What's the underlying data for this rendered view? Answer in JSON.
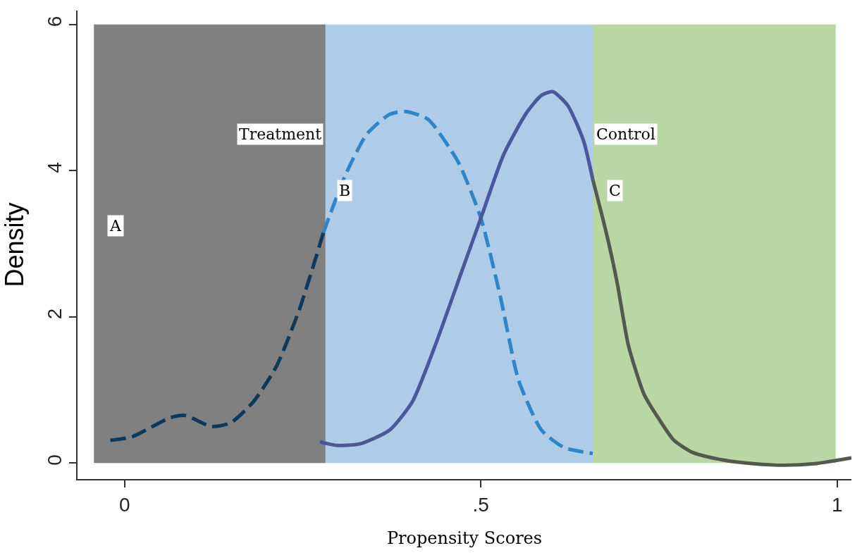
{
  "chart_data": {
    "type": "line",
    "xlabel": "Propensity Scores",
    "ylabel": "Density",
    "xlim": [
      -0.066,
      1.02
    ],
    "ylim": [
      -0.22,
      6.19
    ],
    "xticks": [
      0,
      {
        "value": 0.5,
        "label": ".5"
      },
      1
    ],
    "yticks": [
      0,
      2,
      4,
      6
    ],
    "grid": false,
    "marker": "none",
    "bands": [
      {
        "axis": "x",
        "from": -0.043,
        "to": 0.282,
        "color": "#808080"
      },
      {
        "axis": "x",
        "from": 0.282,
        "to": 0.657,
        "color": "#aecbe8"
      },
      {
        "axis": "x",
        "from": 0.657,
        "to": 0.998,
        "color": "#b8d7a5"
      }
    ],
    "series": [
      {
        "color": "#0d3a5c",
        "line_style": "dashed",
        "x": [
          -0.02,
          0.011,
          0.064,
          0.085,
          0.122,
          0.149,
          0.181,
          0.213,
          0.245,
          0.279
        ],
        "values": [
          0.31,
          0.36,
          0.62,
          0.65,
          0.5,
          0.55,
          0.84,
          1.32,
          2.09,
          3.15
        ]
      },
      {
        "color": "#2e86c8",
        "line_style": "dashed",
        "x": [
          0.279,
          0.309,
          0.34,
          0.372,
          0.394,
          0.426,
          0.468,
          0.5,
          0.527,
          0.553,
          0.585,
          0.617,
          0.657
        ],
        "values": [
          3.15,
          3.92,
          4.5,
          4.77,
          4.81,
          4.7,
          4.12,
          3.35,
          2.29,
          1.13,
          0.45,
          0.21,
          0.13
        ]
      },
      {
        "color": "#4b579b",
        "line_style": "solid",
        "x": [
          0.274,
          0.298,
          0.33,
          0.372,
          0.404,
          0.436,
          0.468,
          0.5,
          0.532,
          0.564,
          0.585,
          0.601,
          0.622,
          0.644,
          0.657
        ],
        "values": [
          0.29,
          0.24,
          0.26,
          0.45,
          0.84,
          1.61,
          2.48,
          3.35,
          4.22,
          4.79,
          5.03,
          5.08,
          4.89,
          4.41,
          3.88
        ]
      },
      {
        "color": "#525a4f",
        "line_style": "solid",
        "x": [
          0.657,
          0.676,
          0.691,
          0.707,
          0.729,
          0.75,
          0.771,
          0.798,
          0.84,
          0.883,
          0.926,
          0.968,
          1.02
        ],
        "values": [
          3.88,
          3.15,
          2.48,
          1.61,
          0.94,
          0.6,
          0.31,
          0.14,
          0.04,
          -0.01,
          -0.03,
          -0.01,
          0.07
        ]
      }
    ],
    "annotations": [
      "Treatment",
      "Control",
      {
        "text": "A",
        "x": -0.013,
        "y": 3.25
      },
      {
        "text": "B",
        "x": 0.309,
        "y": 3.73
      },
      {
        "text": "C",
        "x": 0.688,
        "y": 3.73
      }
    ]
  }
}
